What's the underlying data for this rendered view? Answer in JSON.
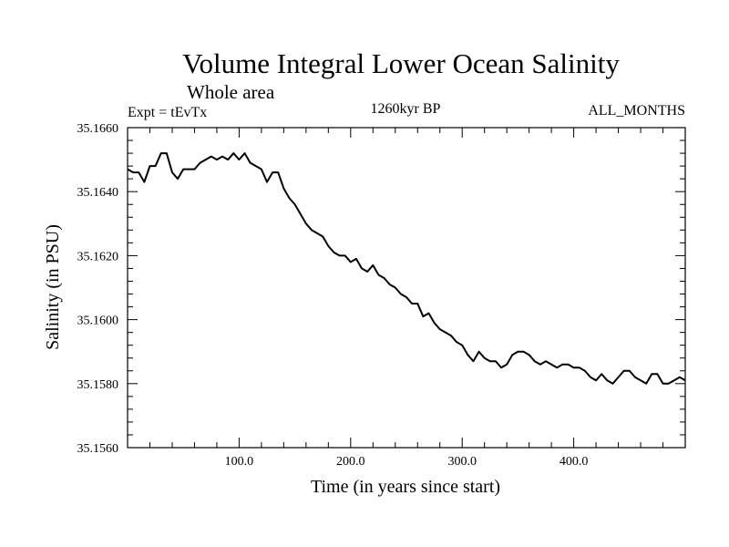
{
  "chart_data": {
    "type": "line",
    "title": "Volume Integral Lower Ocean Salinity",
    "subtitle": "Whole area",
    "left_label": "Expt = tEvTx",
    "center_label": "1260kyr BP",
    "right_label": "ALL_MONTHS",
    "xlabel": "Time (in years since start)",
    "ylabel": "Salinity (in PSU)",
    "xlim": [
      0,
      500
    ],
    "ylim": [
      35.156,
      35.166
    ],
    "x_major_ticks": [
      100,
      200,
      300,
      400
    ],
    "x_tick_labels": [
      "100.0",
      "200.0",
      "300.0",
      "400.0"
    ],
    "x_minor_step": 20,
    "y_major_ticks": [
      35.156,
      35.158,
      35.16,
      35.162,
      35.164,
      35.166
    ],
    "y_tick_labels": [
      "35.1560",
      "35.1580",
      "35.1600",
      "35.1620",
      "35.1640",
      "35.1660"
    ],
    "y_minor_step": 0.0004,
    "grid": false,
    "series": [
      {
        "name": "Salinity",
        "x": [
          0,
          5,
          10,
          15,
          20,
          25,
          30,
          35,
          40,
          45,
          50,
          55,
          60,
          65,
          70,
          75,
          80,
          85,
          90,
          95,
          100,
          105,
          110,
          115,
          120,
          125,
          130,
          135,
          140,
          145,
          150,
          155,
          160,
          165,
          170,
          175,
          180,
          185,
          190,
          195,
          200,
          205,
          210,
          215,
          220,
          225,
          230,
          235,
          240,
          245,
          250,
          255,
          260,
          265,
          270,
          275,
          280,
          285,
          290,
          295,
          300,
          305,
          310,
          315,
          320,
          325,
          330,
          335,
          340,
          345,
          350,
          355,
          360,
          365,
          370,
          375,
          380,
          385,
          390,
          395,
          400,
          405,
          410,
          415,
          420,
          425,
          430,
          435,
          440,
          445,
          450,
          455,
          460,
          465,
          470,
          475,
          480,
          485,
          490,
          495,
          500
        ],
        "values": [
          35.1647,
          35.1646,
          35.1646,
          35.1643,
          35.1648,
          35.1648,
          35.1652,
          35.1652,
          35.1646,
          35.1644,
          35.1647,
          35.1647,
          35.1647,
          35.1649,
          35.165,
          35.1651,
          35.165,
          35.1651,
          35.165,
          35.1652,
          35.165,
          35.1652,
          35.1649,
          35.1648,
          35.1647,
          35.1643,
          35.1646,
          35.1646,
          35.1641,
          35.1638,
          35.1636,
          35.1633,
          35.163,
          35.1628,
          35.1627,
          35.1626,
          35.1623,
          35.1621,
          35.162,
          35.162,
          35.1618,
          35.1619,
          35.1616,
          35.1615,
          35.1617,
          35.1614,
          35.1613,
          35.1611,
          35.161,
          35.1608,
          35.1607,
          35.1605,
          35.1605,
          35.1601,
          35.1602,
          35.1599,
          35.1597,
          35.1596,
          35.1595,
          35.1593,
          35.1592,
          35.1589,
          35.1587,
          35.159,
          35.1588,
          35.1587,
          35.1587,
          35.1585,
          35.1586,
          35.1589,
          35.159,
          35.159,
          35.1589,
          35.1587,
          35.1586,
          35.1587,
          35.1586,
          35.1585,
          35.1586,
          35.1586,
          35.1585,
          35.1585,
          35.1584,
          35.1582,
          35.1581,
          35.1583,
          35.1581,
          35.158,
          35.1582,
          35.1584,
          35.1584,
          35.1582,
          35.1581,
          35.158,
          35.1583,
          35.1583,
          35.158,
          35.158,
          35.1581,
          35.1582,
          35.1581
        ]
      }
    ]
  }
}
